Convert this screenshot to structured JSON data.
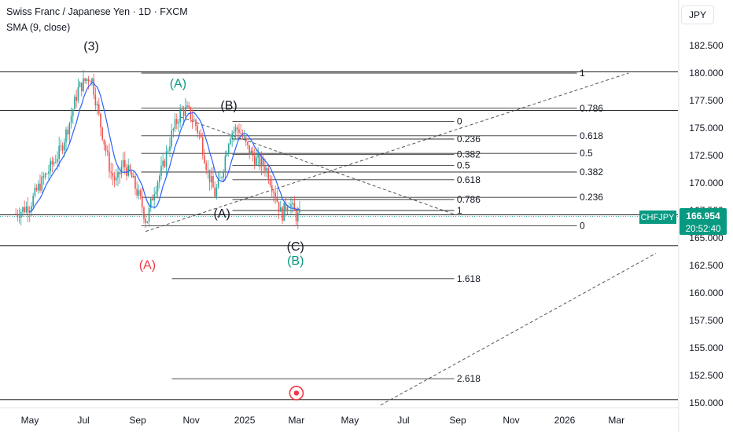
{
  "header": {
    "title": "Swiss Franc / Japanese Yen · 1D · FXCM",
    "indicator": "SMA (9, close)"
  },
  "scale": {
    "currency": "JPY"
  },
  "price_badge": {
    "symbol": "CHFJPY",
    "price": "166.954",
    "countdown": "20:52:40"
  },
  "colors": {
    "candle_up": "#26a69a",
    "candle_down": "#ef5350",
    "sma": "#2962ff",
    "green_label": "#089981",
    "red_label": "#f23645",
    "line": "#000000",
    "dashed": "#555555"
  },
  "chart_data": {
    "type": "candlestick",
    "symbol": "CHFJPY",
    "ylim": [
      149.6,
      185.6
    ],
    "y_ticks": [
      "182.500",
      "180.000",
      "177.500",
      "175.000",
      "172.500",
      "170.000",
      "167.500",
      "165.000",
      "162.500",
      "160.000",
      "157.500",
      "155.000",
      "152.500",
      "150.000"
    ],
    "x_ticks": [
      "May",
      "Jul",
      "Sep",
      "Nov",
      "2025",
      "Mar",
      "May",
      "Jul",
      "Sep",
      "Nov",
      "2026",
      "Mar"
    ],
    "last_price": 166.954,
    "price_path": [
      [
        "2024-04-15",
        167.2
      ],
      [
        "2024-05-01",
        168.0
      ],
      [
        "2024-05-10",
        169.5
      ],
      [
        "2024-05-25",
        171.5
      ],
      [
        "2024-06-05",
        173.0
      ],
      [
        "2024-06-15",
        175.5
      ],
      [
        "2024-06-25",
        178.5
      ],
      [
        "2024-07-05",
        179.5
      ],
      [
        "2024-07-10",
        179.7
      ],
      [
        "2024-07-20",
        175.5
      ],
      [
        "2024-08-01",
        171.0
      ],
      [
        "2024-08-08",
        170.0
      ],
      [
        "2024-08-15",
        171.8
      ],
      [
        "2024-08-25",
        170.5
      ],
      [
        "2024-09-05",
        168.2
      ],
      [
        "2024-09-11",
        166.4
      ],
      [
        "2024-09-20",
        169.5
      ],
      [
        "2024-09-30",
        171.5
      ],
      [
        "2024-10-10",
        174.5
      ],
      [
        "2024-10-20",
        176.5
      ],
      [
        "2024-10-28",
        176.6
      ],
      [
        "2024-11-05",
        175.5
      ],
      [
        "2024-11-12",
        174.0
      ],
      [
        "2024-11-20",
        171.0
      ],
      [
        "2024-11-28",
        169.0
      ],
      [
        "2024-12-05",
        170.5
      ],
      [
        "2024-12-15",
        174.5
      ],
      [
        "2024-12-25",
        175.0
      ],
      [
        "2025-01-05",
        173.0
      ],
      [
        "2025-01-15",
        172.0
      ],
      [
        "2025-01-25",
        171.5
      ],
      [
        "2025-02-05",
        169.0
      ],
      [
        "2025-02-12",
        167.0
      ],
      [
        "2025-02-20",
        168.5
      ],
      [
        "2025-02-28",
        167.0
      ],
      [
        "2025-03-06",
        166.95
      ]
    ],
    "horizontal_lines": [
      180.1,
      176.6,
      167.1,
      164.3,
      150.3
    ],
    "fib_left": {
      "levels": [
        {
          "label": "0",
          "value": 175.6
        },
        {
          "label": "0.236",
          "value": 174.0
        },
        {
          "label": "0.382",
          "value": 172.6
        },
        {
          "label": "0.5",
          "value": 171.6
        },
        {
          "label": "0.618",
          "value": 170.3
        },
        {
          "label": "0.786",
          "value": 168.5
        },
        {
          "label": "1",
          "value": 167.5
        },
        {
          "label": "1.618",
          "value": 161.3
        },
        {
          "label": "2.618",
          "value": 152.2
        }
      ]
    },
    "fib_right": {
      "levels": [
        {
          "label": "1",
          "value": 180.0
        },
        {
          "label": "0.786",
          "value": 176.8
        },
        {
          "label": "0.618",
          "value": 174.3
        },
        {
          "label": "0.5",
          "value": 172.7
        },
        {
          "label": "0.382",
          "value": 171.0
        },
        {
          "label": "0.236",
          "value": 168.7
        },
        {
          "label": "0",
          "value": 166.1
        }
      ]
    },
    "wave_labels": [
      {
        "text": "(3)",
        "date": "2024-07-10",
        "price": 182.5,
        "color": "black"
      },
      {
        "text": "(A)",
        "date": "2024-10-17",
        "price": 179.1,
        "color": "green"
      },
      {
        "text": "(B)",
        "date": "2024-12-14",
        "price": 177.1,
        "color": "black"
      },
      {
        "text": "(A)",
        "date": "2024-12-06",
        "price": 167.3,
        "color": "black"
      },
      {
        "text": "(C)",
        "date": "2025-02-28",
        "price": 164.3,
        "color": "black"
      },
      {
        "text": "(B)",
        "date": "2025-02-28",
        "price": 163.0,
        "color": "green"
      },
      {
        "text": "(A)",
        "date": "2024-09-12",
        "price": 162.6,
        "color": "red"
      }
    ],
    "trend_lines": [
      {
        "from": [
          "2024-09-10",
          165.6
        ],
        "to": [
          "2026-03-15",
          180.0
        ],
        "style": "dashed"
      },
      {
        "from": [
          "2024-10-20",
          176.0
        ],
        "to": [
          "2025-08-30",
          167.1
        ],
        "style": "dashed"
      },
      {
        "from": [
          "2025-06-05",
          149.8
        ],
        "to": [
          "2026-04-15",
          163.6
        ],
        "style": "dashed"
      }
    ],
    "marker": {
      "date": "2025-03-01",
      "price": 150.9,
      "shape": "target"
    }
  }
}
